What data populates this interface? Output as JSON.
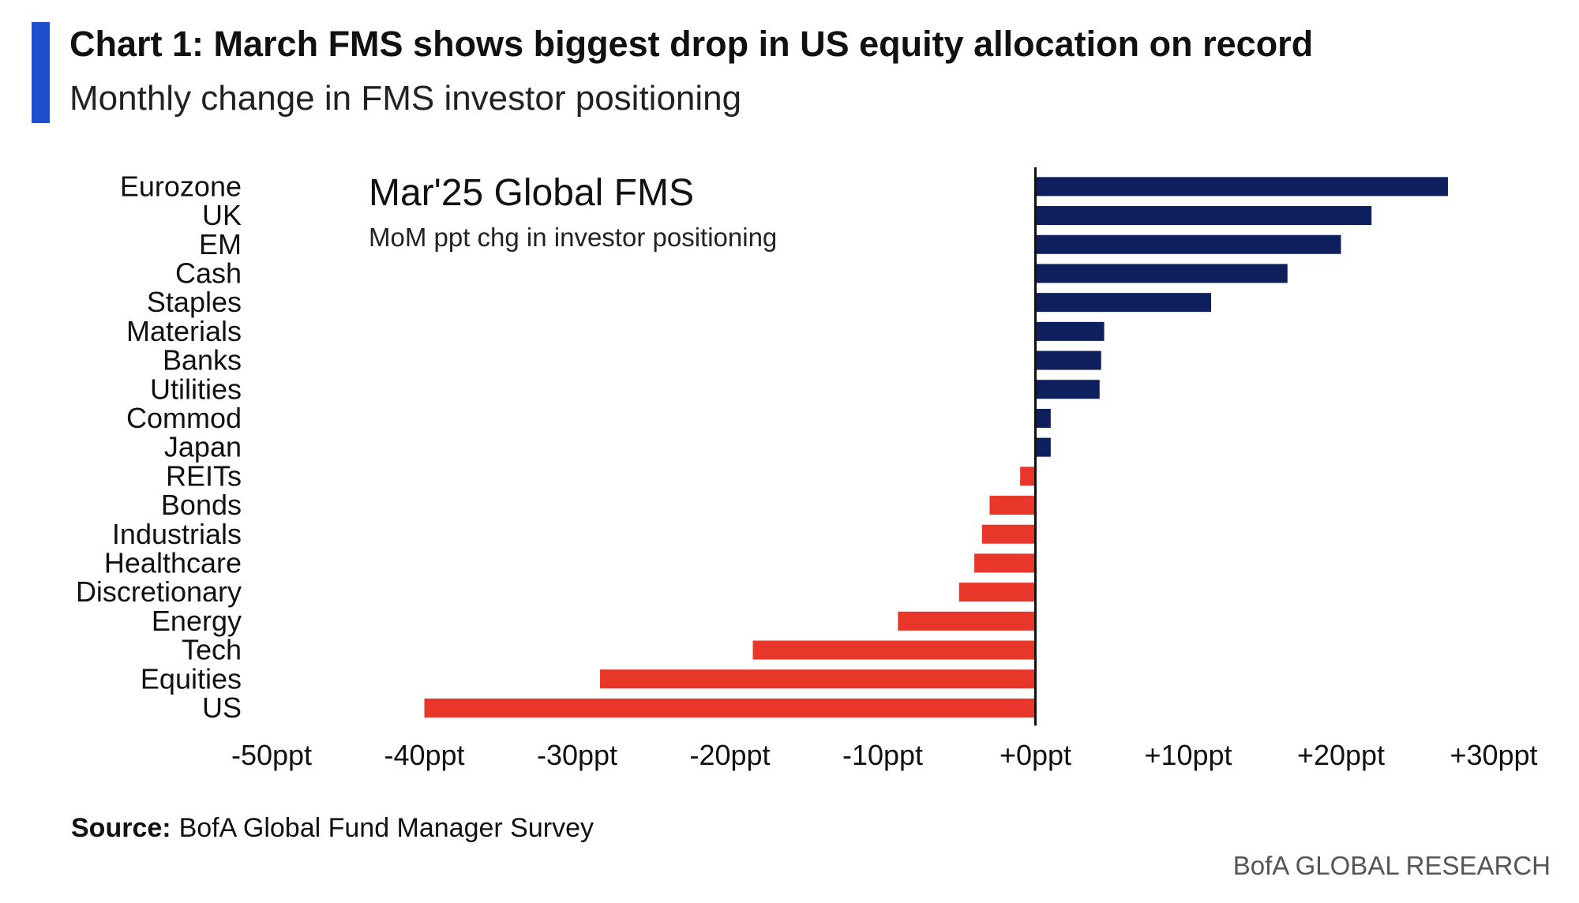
{
  "header": {
    "title": "Chart 1: March FMS shows biggest drop in US equity allocation on record",
    "subtitle": "Monthly change in FMS investor positioning"
  },
  "footer": {
    "source_label": "Source:",
    "source_text": "BofA Global Fund Manager Survey",
    "brand": "BofA GLOBAL RESEARCH"
  },
  "colors": {
    "accent": "#1f4fcc",
    "positive": "#0d1f5c",
    "negative": "#e8362a"
  },
  "chart_data": {
    "type": "bar",
    "orientation": "horizontal",
    "annotation_title": "Mar'25 Global FMS",
    "annotation_subtitle": "MoM ppt chg in investor positioning",
    "categories": [
      "Eurozone",
      "UK",
      "EM",
      "Cash",
      "Staples",
      "Materials",
      "Banks",
      "Utilities",
      "Commod",
      "Japan",
      "REITs",
      "Bonds",
      "Industrials",
      "Healthcare",
      "Discretionary",
      "Energy",
      "Tech",
      "Equities",
      "US"
    ],
    "values": [
      27,
      22,
      20,
      16.5,
      11.5,
      4.5,
      4.3,
      4.2,
      1,
      1,
      -1,
      -3,
      -3.5,
      -4,
      -5,
      -9,
      -18.5,
      -28.5,
      -40
    ],
    "xlim": [
      -50,
      30
    ],
    "x_ticks": [
      -50,
      -40,
      -30,
      -20,
      -10,
      0,
      10,
      20,
      30
    ],
    "x_tick_labels": [
      "-50ppt",
      "-40ppt",
      "-30ppt",
      "-20ppt",
      "-10ppt",
      "+0ppt",
      "+10ppt",
      "+20ppt",
      "+30ppt"
    ],
    "grid": false,
    "legend": "none"
  }
}
